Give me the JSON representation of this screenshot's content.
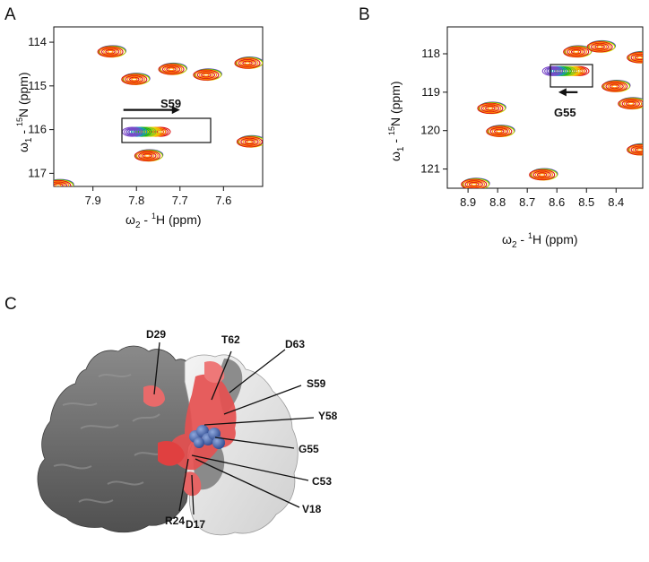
{
  "figure": {
    "panels": [
      {
        "letter": "A",
        "annotation": "S59",
        "x_title": "ω2 - 1H (ppm)",
        "y_title": "ω1 - 15N (ppm)"
      },
      {
        "letter": "B",
        "annotation": "G55",
        "x_title": "ω2 - 1H (ppm)",
        "y_title": "ω1 - 15N (ppm)"
      },
      {
        "letter": "C"
      }
    ],
    "structure_labels": [
      "D29",
      "T62",
      "D63",
      "S59",
      "Y58",
      "G55",
      "C53",
      "V18",
      "R24",
      "D17"
    ],
    "colors": {
      "contour_series": [
        "#dd1111",
        "#ff8a00",
        "#e8d400",
        "#7ec820",
        "#19b419",
        "#1e90c8",
        "#7a48c8"
      ],
      "surface_dark": "#6e6e6e",
      "surface_light": "#e6e6e6",
      "surface_highlight": "#e64848",
      "ligand": "#3c5da8"
    }
  },
  "chart_data": [
    {
      "type": "scatter",
      "panel": "A",
      "xlabel": "ω2 - 1H (ppm)",
      "ylabel": "ω1 - 15N (ppm)",
      "xlim": [
        7.99,
        7.51
      ],
      "ylim": [
        117.3,
        113.65
      ],
      "x_ticks": [
        7.9,
        7.8,
        7.7,
        7.6
      ],
      "y_ticks": [
        114,
        115,
        116,
        117
      ],
      "peaks": [
        {
          "x": 7.86,
          "y": 114.22
        },
        {
          "x": 7.72,
          "y": 114.62
        },
        {
          "x": 7.64,
          "y": 114.75
        },
        {
          "x": 7.805,
          "y": 114.85
        },
        {
          "x": 7.545,
          "y": 114.48
        },
        {
          "x": 7.54,
          "y": 116.28
        },
        {
          "x": 7.775,
          "y": 116.6
        },
        {
          "x": 7.98,
          "y": 117.28
        }
      ],
      "shifting_peak": {
        "label": "S59",
        "x_start": 7.81,
        "x_end": 7.745,
        "y": 116.05
      },
      "arrow": {
        "label": "S59",
        "from_x": 7.83,
        "to_x": 7.7,
        "y": 115.55
      }
    },
    {
      "type": "scatter",
      "panel": "B",
      "xlabel": "ω2 - 1H (ppm)",
      "ylabel": "ω1 - 15N (ppm)",
      "xlim": [
        8.97,
        8.31
      ],
      "ylim": [
        121.5,
        117.3
      ],
      "x_ticks": [
        8.9,
        8.8,
        8.7,
        8.6,
        8.5,
        8.4
      ],
      "y_ticks": [
        118,
        119,
        120,
        121
      ],
      "peaks": [
        {
          "x": 8.535,
          "y": 117.95
        },
        {
          "x": 8.455,
          "y": 117.82
        },
        {
          "x": 8.32,
          "y": 118.1
        },
        {
          "x": 8.405,
          "y": 118.85
        },
        {
          "x": 8.35,
          "y": 119.3
        },
        {
          "x": 8.825,
          "y": 119.42
        },
        {
          "x": 8.795,
          "y": 120.02
        },
        {
          "x": 8.65,
          "y": 121.15
        },
        {
          "x": 8.88,
          "y": 121.4
        },
        {
          "x": 8.32,
          "y": 120.5
        }
      ],
      "shifting_peak": {
        "label": "G55",
        "x_start": 8.615,
        "x_end": 8.525,
        "y": 118.45
      },
      "arrow": {
        "label": "G55",
        "from_x": 8.53,
        "to_x": 8.595,
        "y": 119.0
      }
    }
  ]
}
